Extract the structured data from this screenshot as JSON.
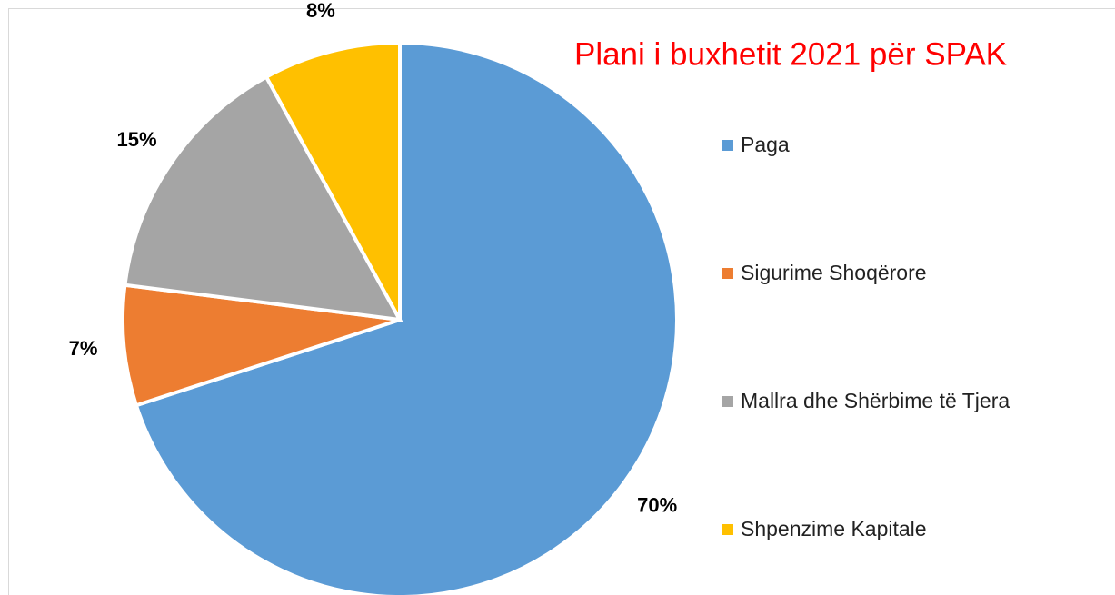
{
  "chart_data": {
    "type": "pie",
    "title": "Plani i buxhetit 2021 për SPAK",
    "categories": [
      "Paga",
      "Sigurime Shoqërore",
      "Mallra dhe Shërbime të Tjera",
      "Shpenzime Kapitale"
    ],
    "values": [
      70,
      7,
      15,
      8
    ],
    "value_labels": [
      "70%",
      "7%",
      "15%",
      "8%"
    ],
    "colors": [
      "#5b9bd5",
      "#ed7d31",
      "#a5a5a5",
      "#ffc000"
    ],
    "title_color": "#ff0000",
    "legend": "right"
  }
}
